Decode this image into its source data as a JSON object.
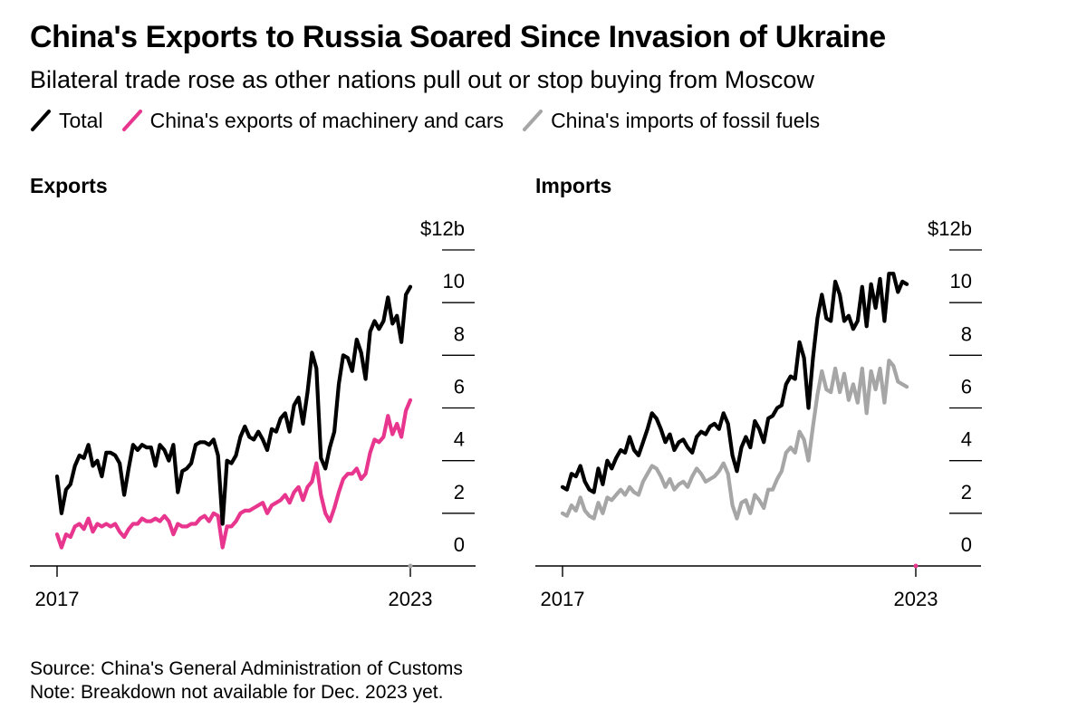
{
  "header": {
    "title": "China's Exports to Russia Soared Since Invasion of Ukraine",
    "subtitle": "Bilateral trade rose as other nations pull out or stop buying from Moscow"
  },
  "legend": [
    {
      "label": "Total",
      "color": "#000000"
    },
    {
      "label": "China's exports of machinery and cars",
      "color": "#e8368f"
    },
    {
      "label": "China's imports of fossil fuels",
      "color": "#a6a6a6"
    }
  ],
  "chart_data": [
    {
      "type": "line",
      "title": "Exports",
      "x_start": 2017,
      "x_end": 2023,
      "x_tick_labels": [
        "2017",
        "2023"
      ],
      "ylim": [
        0,
        12
      ],
      "y_ticks": [
        0,
        2,
        4,
        6,
        8,
        10,
        12
      ],
      "y_tick_labels": [
        "0",
        "2",
        "4",
        "6",
        "8",
        "10",
        "$12b"
      ],
      "series": [
        {
          "name": "Total",
          "color": "#000000",
          "values": [
            3.4,
            2.0,
            2.9,
            3.1,
            3.8,
            4.2,
            4.1,
            4.6,
            3.8,
            4.0,
            3.4,
            4.3,
            4.3,
            4.2,
            3.9,
            2.7,
            3.7,
            4.6,
            4.4,
            4.6,
            4.5,
            4.5,
            3.8,
            4.6,
            4.4,
            4.0,
            4.6,
            2.8,
            3.6,
            3.7,
            3.9,
            4.6,
            4.7,
            4.7,
            4.6,
            4.8,
            4.2,
            1.6,
            4.0,
            3.9,
            4.2,
            4.9,
            5.3,
            4.9,
            4.8,
            5.1,
            4.8,
            4.4,
            5.2,
            5.1,
            5.6,
            5.8,
            5.1,
            6.1,
            6.4,
            5.4,
            6.6,
            8.1,
            7.5,
            4.1,
            3.7,
            4.5,
            5.1,
            6.9,
            8.0,
            7.9,
            7.4,
            8.6,
            8.1,
            7.1,
            8.9,
            9.3,
            9.0,
            9.3,
            10.2,
            9.2,
            9.5,
            8.5,
            10.3,
            10.6
          ]
        },
        {
          "name": "China's exports of machinery and cars",
          "color": "#e8368f",
          "values": [
            1.2,
            0.7,
            1.2,
            1.1,
            1.5,
            1.6,
            1.4,
            1.8,
            1.3,
            1.6,
            1.5,
            1.6,
            1.5,
            1.6,
            1.3,
            1.1,
            1.4,
            1.6,
            1.6,
            1.8,
            1.7,
            1.7,
            1.8,
            1.7,
            1.9,
            1.7,
            1.2,
            1.6,
            1.5,
            1.5,
            1.6,
            1.6,
            1.8,
            1.9,
            1.7,
            2.0,
            1.9,
            0.7,
            1.5,
            1.5,
            1.7,
            2.0,
            2.1,
            2.1,
            2.2,
            2.3,
            2.4,
            2.0,
            2.3,
            2.4,
            2.5,
            2.7,
            2.4,
            2.8,
            3.0,
            2.5,
            3.0,
            3.2,
            3.9,
            2.7,
            2.0,
            1.7,
            2.2,
            2.8,
            3.3,
            3.5,
            3.5,
            3.7,
            3.3,
            3.5,
            4.3,
            4.8,
            4.7,
            4.9,
            5.7,
            5.0,
            5.4,
            4.9,
            5.9,
            6.3
          ]
        }
      ]
    },
    {
      "type": "line",
      "title": "Imports",
      "x_start": 2017,
      "x_end": 2023,
      "x_tick_labels": [
        "2017",
        "2023"
      ],
      "ylim": [
        0,
        12
      ],
      "y_ticks": [
        0,
        2,
        4,
        6,
        8,
        10,
        12
      ],
      "y_tick_labels": [
        "0",
        "2",
        "4",
        "6",
        "8",
        "10",
        "$12b"
      ],
      "series": [
        {
          "name": "Total",
          "color": "#000000",
          "values": [
            3.0,
            2.9,
            3.5,
            3.4,
            3.8,
            3.2,
            2.9,
            2.8,
            3.7,
            3.1,
            4.0,
            3.7,
            4.1,
            4.4,
            4.3,
            4.9,
            4.4,
            4.2,
            4.7,
            5.2,
            5.8,
            5.6,
            5.2,
            4.7,
            5.0,
            4.4,
            4.7,
            4.8,
            4.5,
            4.3,
            4.9,
            5.1,
            5.0,
            5.3,
            5.4,
            5.2,
            5.8,
            5.4,
            4.2,
            3.6,
            4.5,
            4.9,
            4.5,
            5.5,
            5.2,
            4.7,
            5.6,
            5.7,
            6.0,
            6.1,
            6.9,
            7.2,
            7.1,
            8.5,
            7.9,
            6.0,
            7.9,
            9.4,
            10.3,
            9.4,
            9.3,
            10.8,
            10.3,
            9.3,
            9.5,
            9.0,
            9.3,
            10.6,
            9.1,
            10.7,
            9.8,
            10.9,
            9.3,
            11.1,
            11.1,
            10.4,
            10.8,
            10.7
          ]
        },
        {
          "name": "China's imports of fossil fuels",
          "color": "#a6a6a6",
          "values": [
            2.0,
            1.9,
            2.3,
            2.1,
            2.6,
            2.1,
            1.9,
            1.8,
            2.4,
            2.0,
            2.6,
            2.5,
            2.7,
            2.9,
            2.7,
            3.0,
            2.8,
            2.7,
            3.2,
            3.5,
            3.8,
            3.7,
            3.4,
            3.0,
            3.3,
            2.9,
            3.1,
            3.2,
            3.0,
            3.4,
            3.7,
            3.5,
            3.2,
            3.3,
            3.4,
            3.6,
            3.9,
            3.5,
            2.3,
            1.8,
            2.4,
            2.5,
            2.0,
            2.7,
            2.5,
            2.2,
            2.9,
            2.9,
            3.3,
            3.6,
            4.3,
            4.5,
            4.3,
            5.1,
            4.8,
            4.0,
            5.3,
            6.5,
            7.4,
            6.7,
            6.6,
            7.5,
            6.6,
            7.3,
            6.3,
            6.9,
            6.2,
            7.5,
            5.8,
            7.4,
            6.7,
            7.5,
            6.2,
            7.8,
            7.6,
            7.0,
            6.9,
            6.8
          ]
        }
      ]
    }
  ],
  "footer": {
    "source": "Source: China's General Administration of Customs",
    "note": "Note: Breakdown not available for Dec. 2023 yet."
  }
}
